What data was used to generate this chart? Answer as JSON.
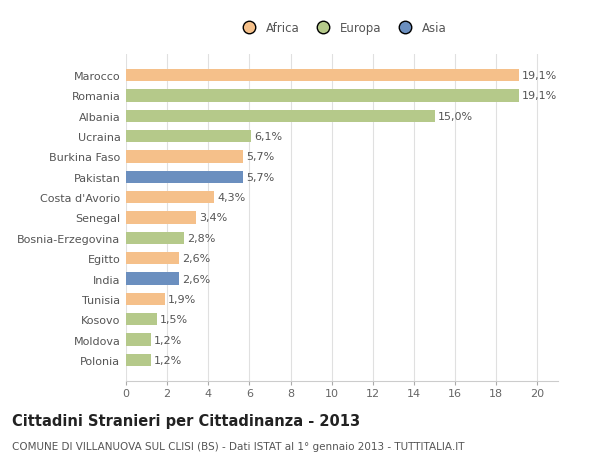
{
  "countries": [
    "Marocco",
    "Romania",
    "Albania",
    "Ucraina",
    "Burkina Faso",
    "Pakistan",
    "Costa d'Avorio",
    "Senegal",
    "Bosnia-Erzegovina",
    "Egitto",
    "India",
    "Tunisia",
    "Kosovo",
    "Moldova",
    "Polonia"
  ],
  "values": [
    19.1,
    19.1,
    15.0,
    6.1,
    5.7,
    5.7,
    4.3,
    3.4,
    2.8,
    2.6,
    2.6,
    1.9,
    1.5,
    1.2,
    1.2
  ],
  "labels": [
    "19,1%",
    "19,1%",
    "15,0%",
    "6,1%",
    "5,7%",
    "5,7%",
    "4,3%",
    "3,4%",
    "2,8%",
    "2,6%",
    "2,6%",
    "1,9%",
    "1,5%",
    "1,2%",
    "1,2%"
  ],
  "continents": [
    "Africa",
    "Europa",
    "Europa",
    "Europa",
    "Africa",
    "Asia",
    "Africa",
    "Africa",
    "Europa",
    "Africa",
    "Asia",
    "Africa",
    "Europa",
    "Europa",
    "Europa"
  ],
  "colors": {
    "Africa": "#F5C08A",
    "Europa": "#B5C98A",
    "Asia": "#6B8FBF"
  },
  "title": "Cittadini Stranieri per Cittadinanza - 2013",
  "subtitle": "COMUNE DI VILLANUOVA SUL CLISI (BS) - Dati ISTAT al 1° gennaio 2013 - TUTTITALIA.IT",
  "xlim": [
    0,
    21
  ],
  "xticks": [
    0,
    2,
    4,
    6,
    8,
    10,
    12,
    14,
    16,
    18,
    20
  ],
  "background_color": "#ffffff",
  "grid_color": "#e0e0e0",
  "bar_height": 0.6,
  "label_fontsize": 8,
  "title_fontsize": 10.5,
  "subtitle_fontsize": 7.5,
  "ytick_fontsize": 8,
  "xtick_fontsize": 8,
  "legend_fontsize": 8.5
}
